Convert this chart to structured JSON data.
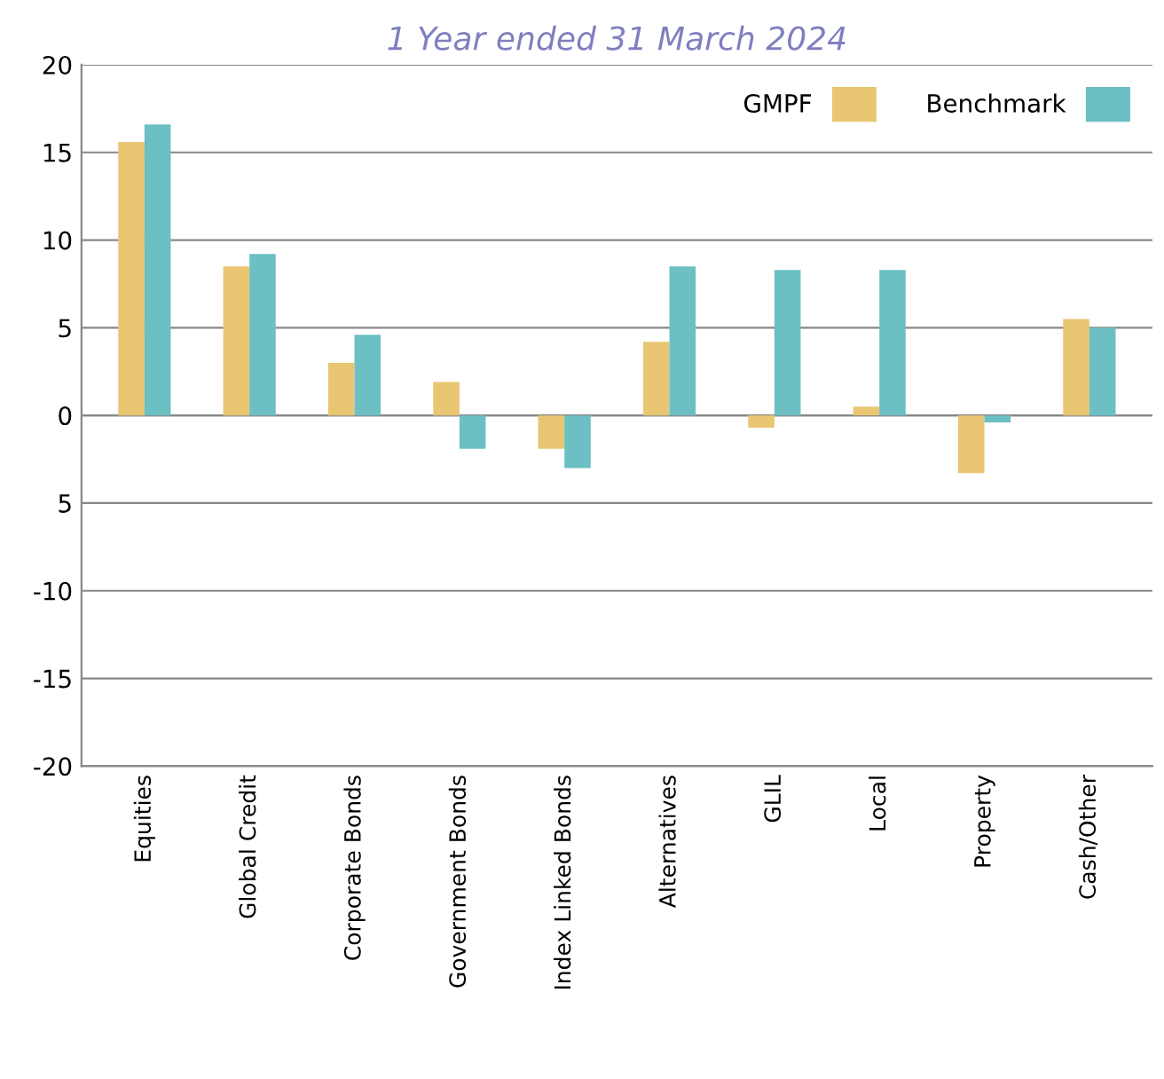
{
  "chart_data": {
    "type": "bar",
    "title": "1 Year ended 31 March 2024",
    "categories": [
      "Equities",
      "Global Credit",
      "Corporate Bonds",
      "Government Bonds",
      "Index Linked Bonds",
      "Alternatives",
      "GLIL",
      "Local",
      "Property",
      "Cash/Other"
    ],
    "series": [
      {
        "name": "GMPF",
        "color": "#e8c672",
        "values": [
          15.6,
          8.5,
          3.0,
          1.9,
          -1.9,
          4.2,
          -0.7,
          0.5,
          -3.3,
          5.5
        ]
      },
      {
        "name": "Benchmark",
        "color": "#6cbfc3",
        "values": [
          16.6,
          9.2,
          4.6,
          -1.9,
          -3.0,
          8.5,
          8.3,
          8.3,
          -0.4,
          5.0
        ]
      }
    ],
    "ylim": [
      -20,
      20
    ],
    "yticks": [
      -20,
      -15,
      -10,
      {
        "value": -5,
        "label": "5"
      },
      0,
      5,
      10,
      15,
      20
    ],
    "grid": "y",
    "legend": "top right"
  }
}
